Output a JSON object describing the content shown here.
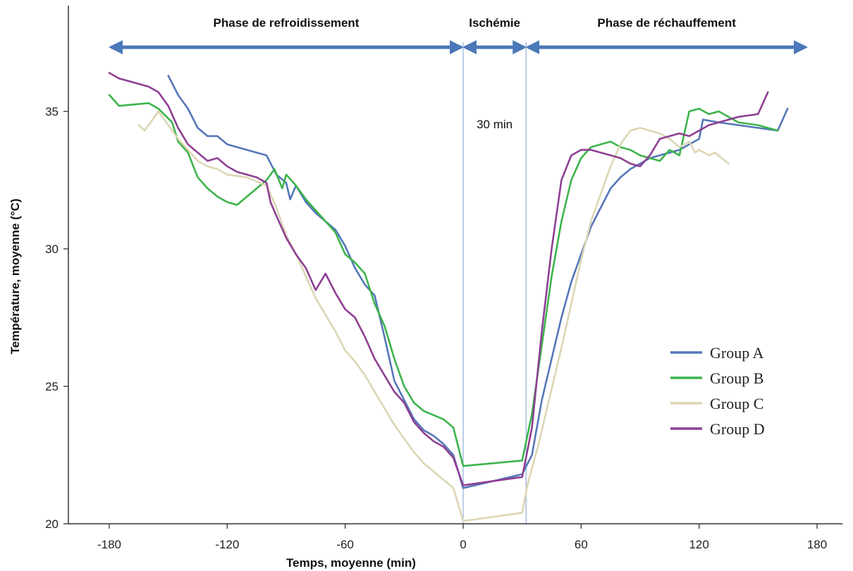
{
  "chart_data": {
    "type": "line",
    "title": "",
    "xlabel": "Temps, moyenne (min)",
    "ylabel": "Température, moyenne (°C)",
    "xlim": [
      -200,
      190
    ],
    "ylim": [
      20,
      38.5
    ],
    "xticks": [
      -180,
      -120,
      -60,
      0,
      60,
      120,
      180
    ],
    "yticks": [
      20,
      25,
      30,
      35
    ],
    "grid": false,
    "legend_position": "bottom-right",
    "phases": [
      {
        "label": "Phase de refroidissement",
        "from": -180,
        "to": 0
      },
      {
        "label": "Ischémie",
        "from": 0,
        "to": 32
      },
      {
        "label": "Phase de réchauffement",
        "from": 32,
        "to": 175
      }
    ],
    "ischemia_annotation": "30 min",
    "ischemia_window": [
      0,
      32
    ],
    "phase_arrow_color": "#4a78b8",
    "series": [
      {
        "name": "Group A",
        "color": "#5576b8",
        "points": [
          [
            -150,
            36.3
          ],
          [
            -145,
            35.6
          ],
          [
            -140,
            35.1
          ],
          [
            -135,
            34.4
          ],
          [
            -130,
            34.1
          ],
          [
            -125,
            34.1
          ],
          [
            -120,
            33.8
          ],
          [
            -110,
            33.6
          ],
          [
            -100,
            33.4
          ],
          [
            -95,
            32.7
          ],
          [
            -90,
            32.4
          ],
          [
            -88,
            31.8
          ],
          [
            -85,
            32.3
          ],
          [
            -80,
            31.7
          ],
          [
            -75,
            31.3
          ],
          [
            -70,
            31.0
          ],
          [
            -65,
            30.7
          ],
          [
            -60,
            30.1
          ],
          [
            -55,
            29.3
          ],
          [
            -50,
            28.7
          ],
          [
            -45,
            28.3
          ],
          [
            -40,
            26.8
          ],
          [
            -35,
            25.2
          ],
          [
            -30,
            24.5
          ],
          [
            -25,
            23.8
          ],
          [
            -20,
            23.4
          ],
          [
            -15,
            23.2
          ],
          [
            -10,
            22.9
          ],
          [
            -5,
            22.5
          ],
          [
            0,
            21.3
          ],
          [
            30,
            21.8
          ],
          [
            35,
            22.5
          ],
          [
            40,
            24.5
          ],
          [
            45,
            26.0
          ],
          [
            50,
            27.5
          ],
          [
            55,
            28.8
          ],
          [
            60,
            29.8
          ],
          [
            65,
            30.8
          ],
          [
            70,
            31.5
          ],
          [
            75,
            32.2
          ],
          [
            80,
            32.6
          ],
          [
            85,
            32.9
          ],
          [
            90,
            33.1
          ],
          [
            95,
            33.3
          ],
          [
            100,
            33.4
          ],
          [
            110,
            33.6
          ],
          [
            115,
            33.8
          ],
          [
            120,
            34.0
          ],
          [
            122,
            34.7
          ],
          [
            130,
            34.6
          ],
          [
            140,
            34.5
          ],
          [
            150,
            34.4
          ],
          [
            160,
            34.3
          ],
          [
            165,
            35.1
          ]
        ]
      },
      {
        "name": "Group B",
        "color": "#3cb44b",
        "points": [
          [
            -180,
            35.6
          ],
          [
            -175,
            35.2
          ],
          [
            -160,
            35.3
          ],
          [
            -155,
            35.1
          ],
          [
            -148,
            34.6
          ],
          [
            -145,
            33.9
          ],
          [
            -140,
            33.5
          ],
          [
            -135,
            32.6
          ],
          [
            -130,
            32.2
          ],
          [
            -125,
            31.9
          ],
          [
            -120,
            31.7
          ],
          [
            -115,
            31.6
          ],
          [
            -100,
            32.5
          ],
          [
            -96,
            32.9
          ],
          [
            -92,
            32.2
          ],
          [
            -90,
            32.7
          ],
          [
            -85,
            32.3
          ],
          [
            -80,
            31.8
          ],
          [
            -75,
            31.4
          ],
          [
            -70,
            31.0
          ],
          [
            -65,
            30.6
          ],
          [
            -60,
            29.8
          ],
          [
            -55,
            29.5
          ],
          [
            -50,
            29.1
          ],
          [
            -45,
            28.0
          ],
          [
            -40,
            27.2
          ],
          [
            -35,
            26.0
          ],
          [
            -30,
            25.0
          ],
          [
            -25,
            24.4
          ],
          [
            -20,
            24.1
          ],
          [
            -10,
            23.8
          ],
          [
            -5,
            23.5
          ],
          [
            0,
            22.1
          ],
          [
            30,
            22.3
          ],
          [
            35,
            24.0
          ],
          [
            40,
            26.5
          ],
          [
            45,
            29.0
          ],
          [
            50,
            31.0
          ],
          [
            55,
            32.5
          ],
          [
            60,
            33.3
          ],
          [
            65,
            33.7
          ],
          [
            70,
            33.8
          ],
          [
            75,
            33.9
          ],
          [
            80,
            33.7
          ],
          [
            85,
            33.6
          ],
          [
            90,
            33.4
          ],
          [
            95,
            33.3
          ],
          [
            100,
            33.2
          ],
          [
            105,
            33.6
          ],
          [
            110,
            33.4
          ],
          [
            115,
            35.0
          ],
          [
            120,
            35.1
          ],
          [
            125,
            34.9
          ],
          [
            130,
            35.0
          ],
          [
            135,
            34.8
          ],
          [
            140,
            34.6
          ],
          [
            150,
            34.5
          ],
          [
            160,
            34.3
          ]
        ]
      },
      {
        "name": "Group C",
        "color": "#dcd6b4",
        "points": [
          [
            -165,
            34.5
          ],
          [
            -162,
            34.3
          ],
          [
            -158,
            34.7
          ],
          [
            -155,
            35.0
          ],
          [
            -150,
            34.5
          ],
          [
            -145,
            34.0
          ],
          [
            -140,
            33.6
          ],
          [
            -135,
            33.2
          ],
          [
            -130,
            33.0
          ],
          [
            -125,
            32.9
          ],
          [
            -120,
            32.7
          ],
          [
            -110,
            32.6
          ],
          [
            -100,
            32.3
          ],
          [
            -95,
            31.5
          ],
          [
            -90,
            30.5
          ],
          [
            -85,
            29.8
          ],
          [
            -80,
            29.0
          ],
          [
            -75,
            28.2
          ],
          [
            -70,
            27.6
          ],
          [
            -65,
            27.0
          ],
          [
            -60,
            26.3
          ],
          [
            -55,
            25.9
          ],
          [
            -50,
            25.4
          ],
          [
            -45,
            24.8
          ],
          [
            -40,
            24.2
          ],
          [
            -35,
            23.6
          ],
          [
            -30,
            23.1
          ],
          [
            -25,
            22.6
          ],
          [
            -20,
            22.2
          ],
          [
            -15,
            21.9
          ],
          [
            -10,
            21.6
          ],
          [
            -5,
            21.3
          ],
          [
            0,
            20.1
          ],
          [
            30,
            20.4
          ],
          [
            33,
            21.5
          ],
          [
            38,
            22.8
          ],
          [
            45,
            24.9
          ],
          [
            50,
            26.4
          ],
          [
            55,
            28.0
          ],
          [
            60,
            29.6
          ],
          [
            65,
            31.0
          ],
          [
            70,
            32.0
          ],
          [
            75,
            33.0
          ],
          [
            80,
            33.8
          ],
          [
            85,
            34.3
          ],
          [
            90,
            34.4
          ],
          [
            95,
            34.3
          ],
          [
            100,
            34.2
          ],
          [
            105,
            34.0
          ],
          [
            110,
            33.7
          ],
          [
            115,
            33.9
          ],
          [
            118,
            33.5
          ],
          [
            120,
            33.6
          ],
          [
            125,
            33.4
          ],
          [
            128,
            33.5
          ],
          [
            135,
            33.1
          ]
        ]
      },
      {
        "name": "Group D",
        "color": "#8e3f93",
        "points": [
          [
            -180,
            36.4
          ],
          [
            -175,
            36.2
          ],
          [
            -165,
            36.0
          ],
          [
            -160,
            35.9
          ],
          [
            -155,
            35.7
          ],
          [
            -150,
            35.2
          ],
          [
            -145,
            34.4
          ],
          [
            -140,
            33.8
          ],
          [
            -135,
            33.5
          ],
          [
            -130,
            33.2
          ],
          [
            -125,
            33.3
          ],
          [
            -120,
            33.0
          ],
          [
            -115,
            32.8
          ],
          [
            -105,
            32.6
          ],
          [
            -100,
            32.4
          ],
          [
            -98,
            31.7
          ],
          [
            -95,
            31.2
          ],
          [
            -90,
            30.4
          ],
          [
            -85,
            29.8
          ],
          [
            -80,
            29.3
          ],
          [
            -75,
            28.5
          ],
          [
            -70,
            29.1
          ],
          [
            -65,
            28.4
          ],
          [
            -60,
            27.8
          ],
          [
            -55,
            27.5
          ],
          [
            -50,
            26.8
          ],
          [
            -45,
            26.0
          ],
          [
            -40,
            25.4
          ],
          [
            -35,
            24.8
          ],
          [
            -30,
            24.4
          ],
          [
            -25,
            23.7
          ],
          [
            -20,
            23.3
          ],
          [
            -15,
            23.0
          ],
          [
            -10,
            22.8
          ],
          [
            -5,
            22.4
          ],
          [
            0,
            21.4
          ],
          [
            30,
            21.7
          ],
          [
            35,
            23.5
          ],
          [
            40,
            27.0
          ],
          [
            45,
            30.0
          ],
          [
            50,
            32.5
          ],
          [
            55,
            33.4
          ],
          [
            60,
            33.6
          ],
          [
            65,
            33.6
          ],
          [
            70,
            33.5
          ],
          [
            75,
            33.4
          ],
          [
            80,
            33.3
          ],
          [
            85,
            33.1
          ],
          [
            90,
            33.0
          ],
          [
            95,
            33.4
          ],
          [
            100,
            34.0
          ],
          [
            105,
            34.1
          ],
          [
            110,
            34.2
          ],
          [
            115,
            34.1
          ],
          [
            120,
            34.3
          ],
          [
            125,
            34.5
          ],
          [
            130,
            34.6
          ],
          [
            140,
            34.8
          ],
          [
            150,
            34.9
          ],
          [
            155,
            35.7
          ]
        ]
      }
    ]
  }
}
